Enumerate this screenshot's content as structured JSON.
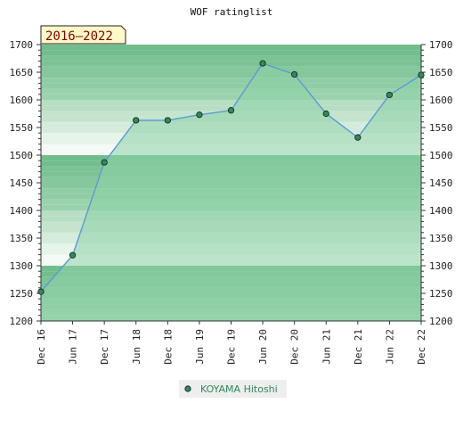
{
  "chart_data": {
    "type": "area",
    "title": "WOF ratinglist",
    "period_label": "2016–2022",
    "x": [
      "Dec 16",
      "Jun 17",
      "Dec 17",
      "Jun 18",
      "Dec 18",
      "Jun 19",
      "Dec 19",
      "Jun 20",
      "Dec 20",
      "Jun 21",
      "Dec 21",
      "Jun 22",
      "Dec 22"
    ],
    "series": [
      {
        "name": "KOYAMA Hitoshi",
        "values": [
          1253,
          1319,
          1487,
          1563,
          1563,
          1573,
          1581,
          1666,
          1646,
          1575,
          1532,
          1609,
          1645
        ]
      }
    ],
    "ylim": [
      1200,
      1700
    ],
    "yticks": [
      1200,
      1250,
      1300,
      1350,
      1400,
      1450,
      1500,
      1550,
      1600,
      1650,
      1700
    ],
    "y_axis_both_sides": true,
    "legend_position": "bottom-center",
    "colors": {
      "line": "#5b9bd5",
      "area": "#8ed2a8",
      "marker": "#2e8b57",
      "legend_text": "#2e8b57",
      "period_bg": "#fff8c8",
      "period_text": "#800000"
    }
  }
}
